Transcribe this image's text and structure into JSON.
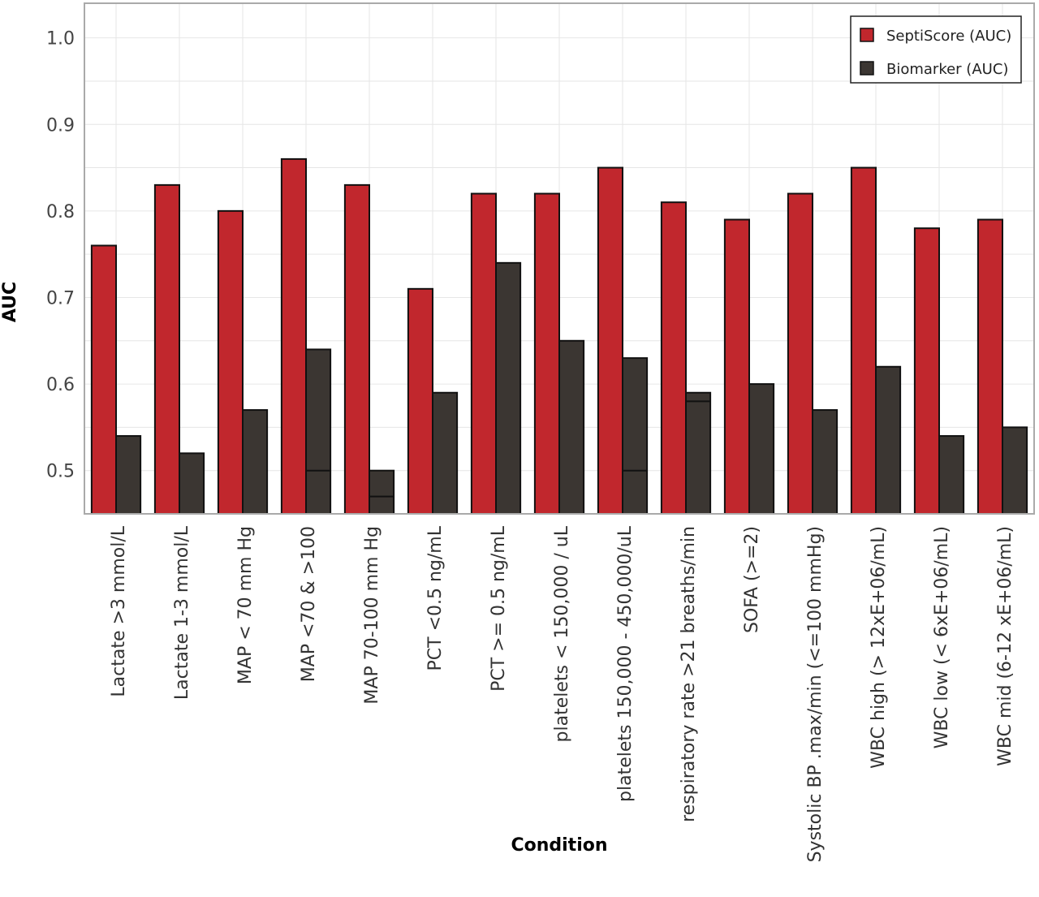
{
  "chart_data": {
    "type": "bar",
    "title": "",
    "xlabel": "Condition",
    "ylabel": "AUC",
    "ylim": [
      0.45,
      1.04
    ],
    "yticks": [
      "0.5",
      "0.6",
      "0.7",
      "0.8",
      "0.9",
      "1.0"
    ],
    "grid": true,
    "legend_position": "top-right",
    "categories": [
      "Lactate >3 mmol/L",
      "Lactate 1-3 mmol/L",
      "MAP < 70 mm Hg",
      "MAP <70 & >100",
      "MAP 70-100 mm Hg",
      "PCT <0.5 ng/mL",
      "PCT >= 0.5 ng/mL",
      "platelets < 150,000 / uL",
      "platelets 150,000 - 450,000/uL",
      "respiratory rate >21 breaths/min",
      "SOFA (>=2)",
      "Systolic BP .max/min (<=100 mmHg)",
      "WBC high (> 12xE+06/mL)",
      "WBC low (< 6xE+06/mL)",
      "WBC mid (6-12 xE+06/mL)"
    ],
    "series": [
      {
        "name": "SeptiScore (AUC)",
        "color": "#c1272d",
        "values": [
          0.76,
          0.83,
          0.8,
          0.86,
          0.83,
          0.71,
          0.82,
          0.82,
          0.85,
          0.81,
          0.79,
          0.82,
          0.85,
          0.78,
          0.79
        ]
      },
      {
        "name": "Biomarker (AUC)",
        "color": "#3b3632",
        "values": [
          0.54,
          0.52,
          0.57,
          0.64,
          0.5,
          0.59,
          0.74,
          0.65,
          0.63,
          0.59,
          0.6,
          0.57,
          0.62,
          0.54,
          0.55
        ],
        "inner_lines": [
          null,
          null,
          null,
          0.5,
          0.47,
          null,
          null,
          null,
          0.5,
          0.58,
          null,
          null,
          null,
          null,
          null
        ]
      }
    ]
  }
}
